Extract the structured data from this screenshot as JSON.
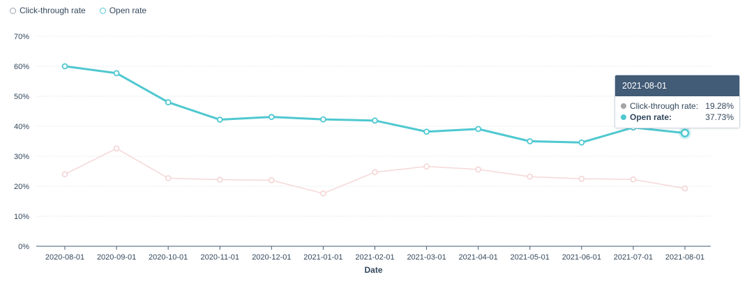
{
  "legend": {
    "ctr_label": "Click-through rate",
    "open_label": "Open rate"
  },
  "colors": {
    "open": "#4fc8d0",
    "ctr": "#f5d8d8",
    "ctr_legend": "#99a1ab",
    "tooltip_header": "#425b76"
  },
  "tooltip": {
    "date": "2021-08-01",
    "rows": [
      {
        "name": "Click-through rate:",
        "value": "19.28%",
        "color": "#a5a5a5"
      },
      {
        "name": "Open rate:",
        "value": "37.73%",
        "color": "#4fc8d0"
      }
    ]
  },
  "chart_data": {
    "type": "line",
    "xlabel": "Date",
    "ylabel": "",
    "ylim": [
      0,
      70
    ],
    "yticks": [
      "0%",
      "10%",
      "20%",
      "30%",
      "40%",
      "50%",
      "60%",
      "70%"
    ],
    "grid": true,
    "legend_position": "top-left",
    "x": [
      "2020-08-01",
      "2020-09-01",
      "2020-10-01",
      "2020-11-01",
      "2020-12-01",
      "2021-01-01",
      "2021-02-01",
      "2021-03-01",
      "2021-04-01",
      "2021-05-01",
      "2021-06-01",
      "2021-07-01",
      "2021-08-01"
    ],
    "series": [
      {
        "name": "Open rate",
        "values": [
          60.0,
          57.7,
          48.0,
          42.2,
          43.1,
          42.3,
          41.9,
          38.2,
          39.1,
          35.0,
          34.6,
          39.6,
          37.73
        ]
      },
      {
        "name": "Click-through rate",
        "values": [
          24.0,
          32.6,
          22.7,
          22.2,
          22.0,
          17.6,
          24.7,
          26.6,
          25.6,
          23.2,
          22.5,
          22.3,
          19.28
        ]
      }
    ]
  }
}
